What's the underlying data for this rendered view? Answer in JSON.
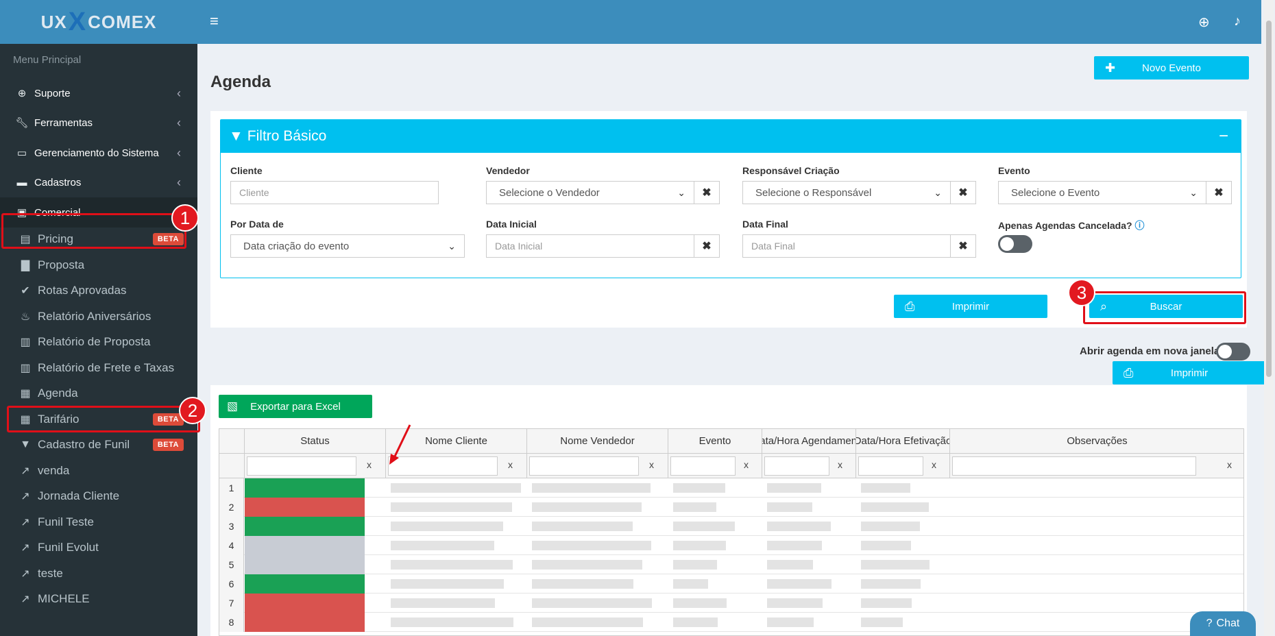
{
  "logo": {
    "left": "UX",
    "x": "X",
    "right": "COMEX"
  },
  "sidebar": {
    "header": "Menu Principal",
    "items": [
      {
        "label": "Suporte",
        "icon": "support-icon"
      },
      {
        "label": "Ferramentas",
        "icon": "wrench-icon"
      },
      {
        "label": "Gerenciamento do Sistema",
        "icon": "laptop-icon"
      },
      {
        "label": "Cadastros",
        "icon": "book-icon"
      },
      {
        "label": "Comercial",
        "icon": "briefcase-icon"
      }
    ],
    "sub_items": [
      {
        "label": "Pricing",
        "badge": "BETA"
      },
      {
        "label": "Proposta",
        "badge": ""
      },
      {
        "label": "Rotas Aprovadas",
        "badge": ""
      },
      {
        "label": "Relatório Aniversários",
        "badge": ""
      },
      {
        "label": "Relatório de Proposta",
        "badge": ""
      },
      {
        "label": "Relatório de Frete e Taxas",
        "badge": ""
      },
      {
        "label": "Agenda",
        "badge": ""
      },
      {
        "label": "Tarifário",
        "badge": "BETA"
      },
      {
        "label": "Cadastro de Funil",
        "badge": "BETA"
      },
      {
        "label": "venda",
        "badge": ""
      },
      {
        "label": "Jornada Cliente",
        "badge": ""
      },
      {
        "label": "Funil Teste",
        "badge": ""
      },
      {
        "label": "Funil Evolut",
        "badge": ""
      },
      {
        "label": "teste",
        "badge": ""
      },
      {
        "label": "MICHELE",
        "badge": ""
      }
    ]
  },
  "annotations": {
    "one": "1",
    "two": "2",
    "three": "3"
  },
  "page": {
    "title": "Agenda",
    "new_event": "Novo Evento"
  },
  "filter": {
    "title": "Filtro Básico",
    "cliente_label": "Cliente",
    "cliente_placeholder": "Cliente",
    "vendedor_label": "Vendedor",
    "vendedor_value": "Selecione o Vendedor",
    "responsavel_label": "Responsável Criação",
    "responsavel_value": "Selecione o Responsável",
    "evento_label": "Evento",
    "evento_value": "Selecione o Evento",
    "por_data_label": "Por Data de",
    "por_data_value": "Data criação do evento",
    "data_inicial_label": "Data Inicial",
    "data_inicial_placeholder": "Data Inicial",
    "data_final_label": "Data Final",
    "data_final_placeholder": "Data Final",
    "canceladas_label": "Apenas Agendas Cancelada?",
    "imprimir": "Imprimir",
    "buscar": "Buscar"
  },
  "nova_janela_label": "Abrir agenda em nova janela?",
  "table": {
    "export": "Exportar para Excel",
    "columns": [
      "Status",
      "Nome Cliente",
      "Nome Vendedor",
      "Evento",
      "Data/Hora Agendamento",
      "Data/Hora Efetivação",
      "Observações"
    ],
    "clear": "x",
    "row_numbers": [
      "1",
      "2",
      "3",
      "4",
      "5",
      "6",
      "7",
      "8"
    ],
    "status_colors": [
      "#1aa155",
      "#d9534f",
      "#1aa155",
      "#c8ccd4",
      "#c8ccd4",
      "#1aa155",
      "#d9534f",
      "#d9534f"
    ]
  },
  "chat": "Chat"
}
